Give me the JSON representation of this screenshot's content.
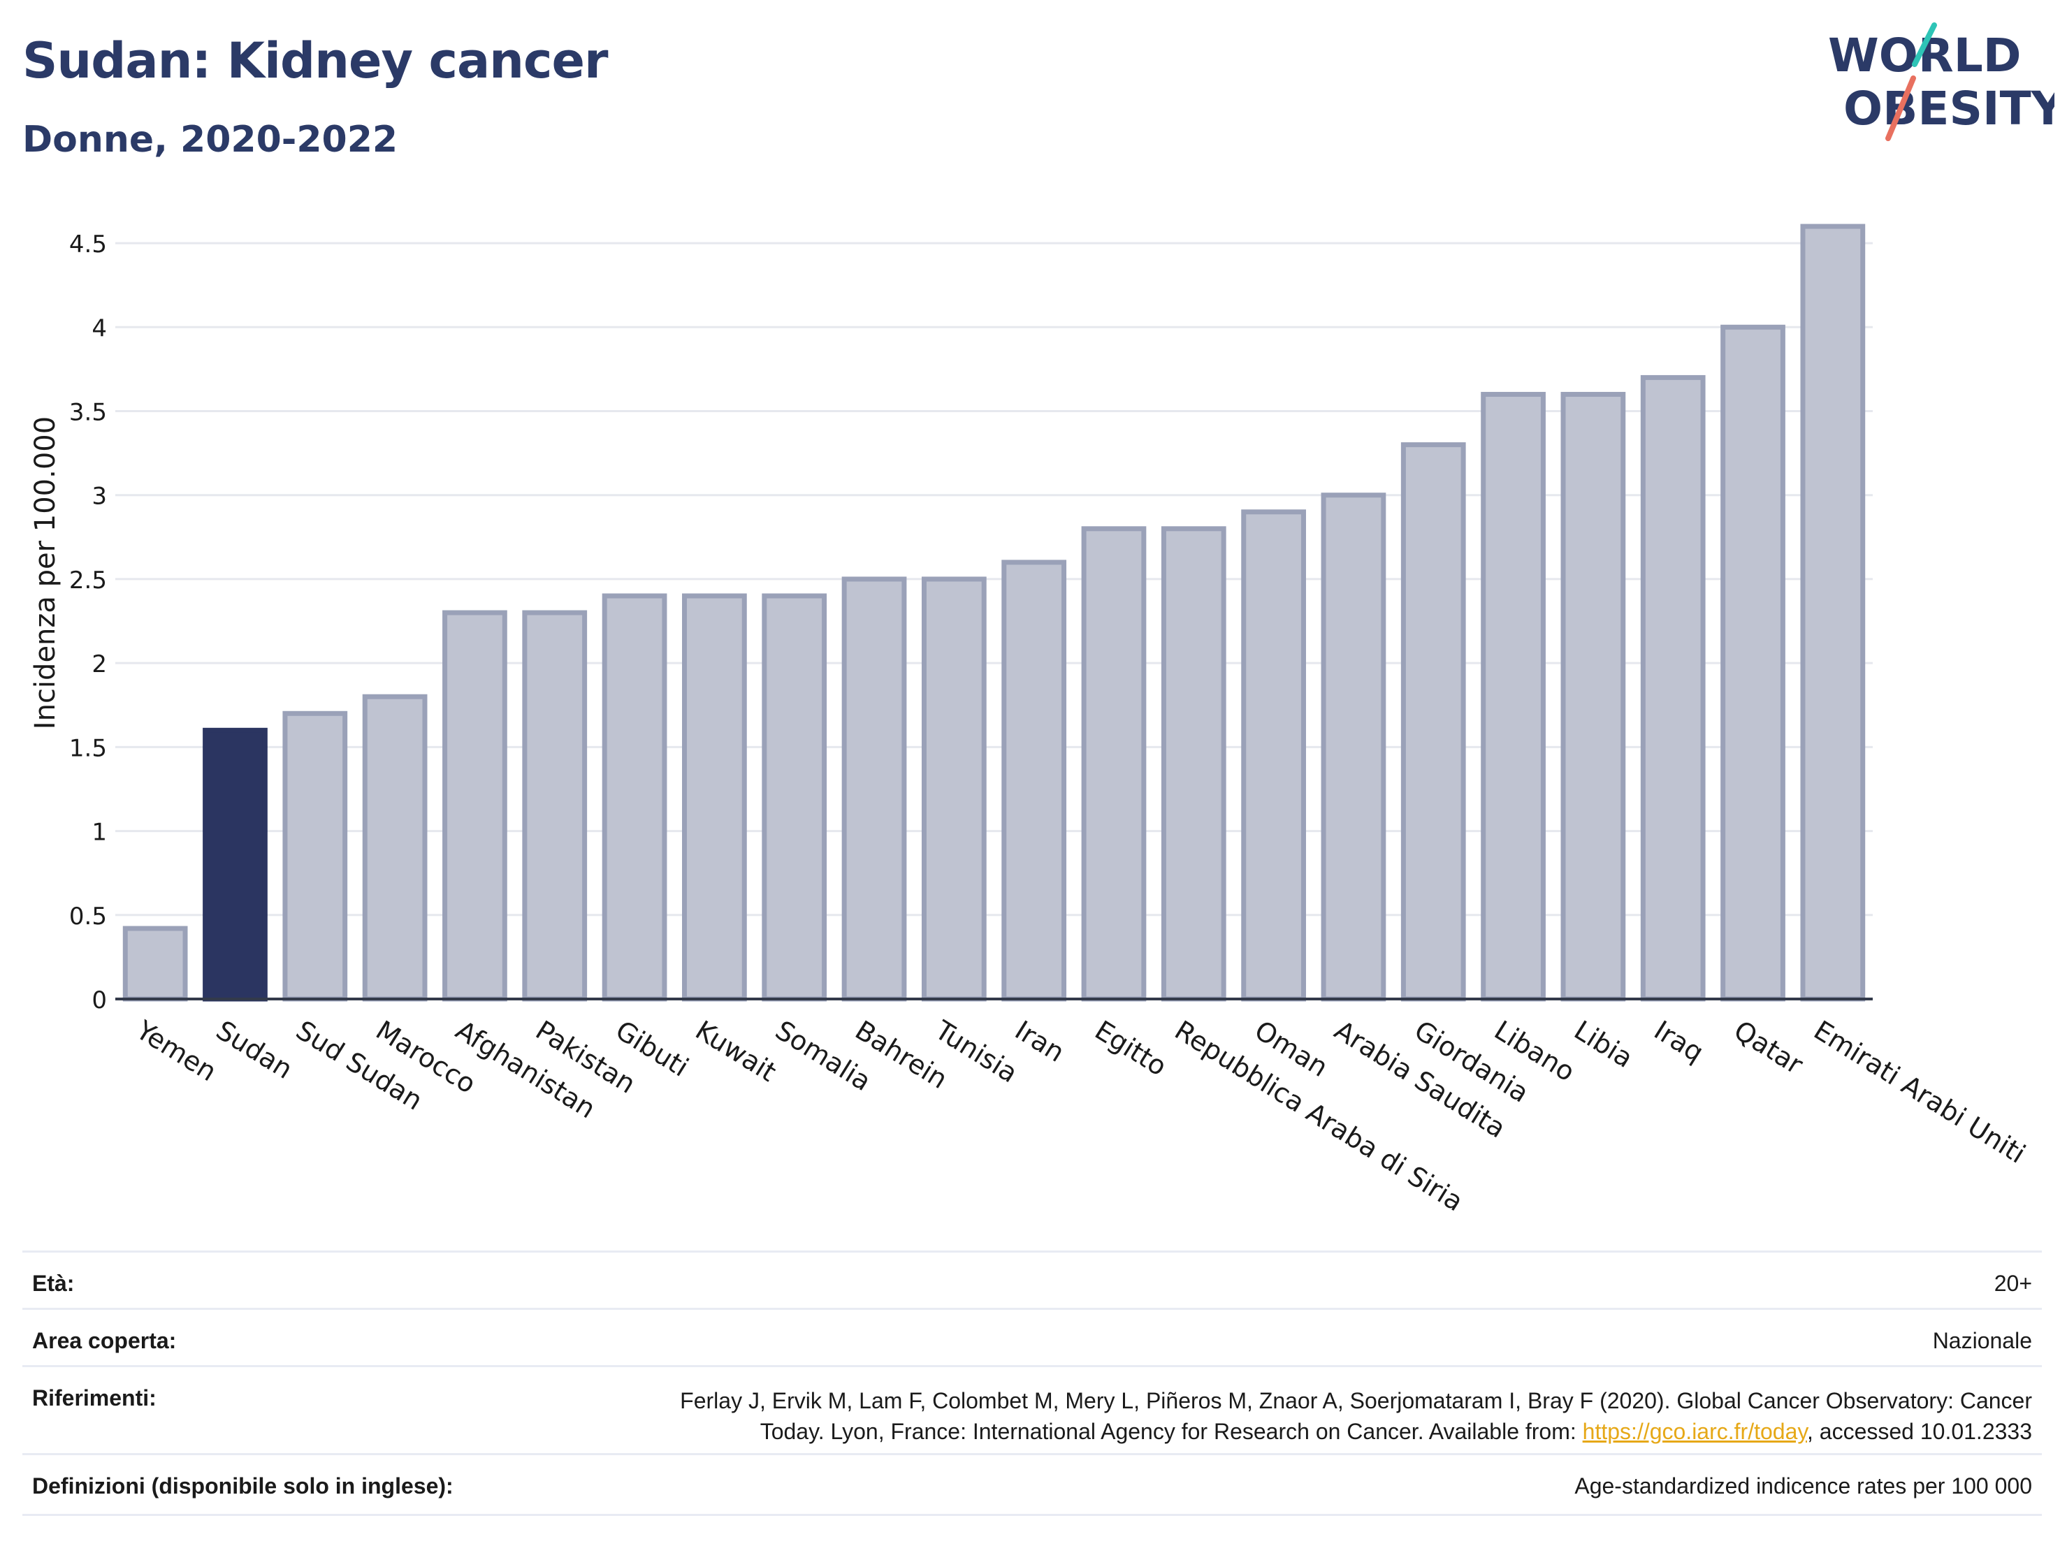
{
  "header": {
    "title": "Sudan: Kidney cancer",
    "subtitle": "Donne, 2020-2022",
    "logo_line1": "WORLD",
    "logo_line2": "OBESITY"
  },
  "colors": {
    "highlight": "#2b3561",
    "bar_fill": "#bfc3d1",
    "bar_stroke": "#9aa1b8",
    "title": "#2b3a67",
    "logo_teal": "#2ec4b6",
    "logo_coral": "#e8705f",
    "link": "#e6a817"
  },
  "chart_data": {
    "type": "bar",
    "title": "Sudan: Kidney cancer",
    "subtitle": "Donne, 2020-2022",
    "ylabel": "Incidenza per 100.000",
    "xlabel": "",
    "ylim": [
      0,
      4.7
    ],
    "yticks": [
      0,
      0.5,
      1,
      1.5,
      2,
      2.5,
      3,
      3.5,
      4,
      4.5
    ],
    "ytick_labels": [
      "0",
      "0.5",
      "1",
      "1.5",
      "2",
      "2.5",
      "3",
      "3.5",
      "4",
      "4.5"
    ],
    "grid": true,
    "highlight_category": "Sudan",
    "categories": [
      "Yemen",
      "Sudan",
      "Sud Sudan",
      "Marocco",
      "Afghanistan",
      "Pakistan",
      "Gibuti",
      "Kuwait",
      "Somalia",
      "Bahrein",
      "Tunisia",
      "Iran",
      "Egitto",
      "Repubblica Araba di Siria",
      "Oman",
      "Arabia Saudita",
      "Giordania",
      "Libano",
      "Libia",
      "Iraq",
      "Qatar",
      "Emirati Arabi Uniti"
    ],
    "values": [
      0.42,
      1.6,
      1.7,
      1.8,
      2.3,
      2.3,
      2.4,
      2.4,
      2.4,
      2.5,
      2.5,
      2.6,
      2.8,
      2.8,
      2.9,
      3.0,
      3.3,
      3.6,
      3.6,
      3.7,
      4.0,
      4.6
    ]
  },
  "metadata": {
    "rows": [
      {
        "key": "Età:",
        "value": [
          "20+"
        ]
      },
      {
        "key": "Area coperta:",
        "value": [
          "Nazionale"
        ]
      },
      {
        "key": "Riferimenti:",
        "value": [
          "Ferlay J, Ervik M, Lam F, Colombet M, Mery L, Piñeros M, Znaor A, Soerjomataram I, Bray F (2020). Global Cancer Observatory: Cancer",
          "Today. Lyon, France: International Agency for Research on Cancer. Available from: "
        ],
        "link": "https://gco.iarc.fr/today",
        "suffix": ", accessed 10.01.2333"
      },
      {
        "key": "Definizioni (disponibile solo in inglese):",
        "value": [
          "Age-standardized indicence rates per 100 000"
        ]
      }
    ]
  }
}
